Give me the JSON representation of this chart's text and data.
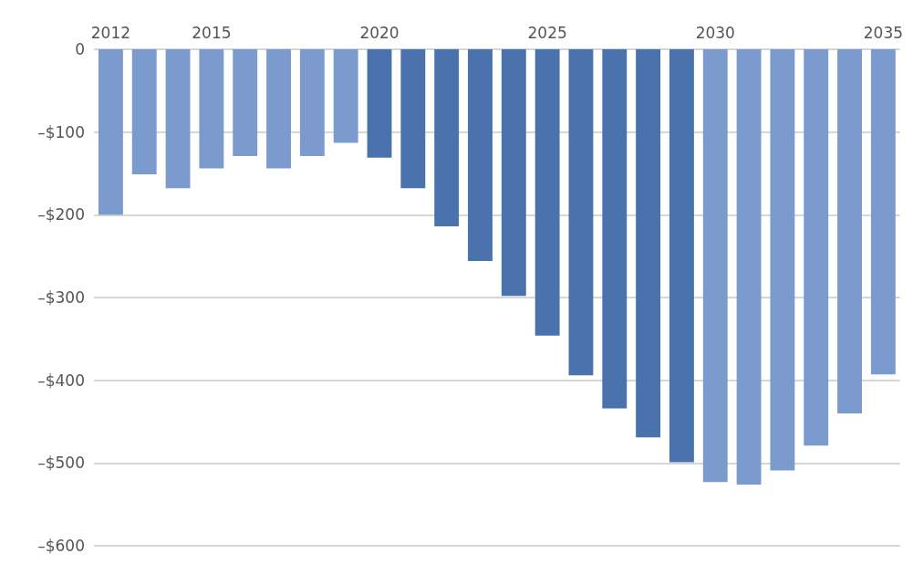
{
  "chart_data": {
    "type": "bar",
    "categories": [
      "2012",
      null,
      null,
      "2015",
      null,
      null,
      null,
      null,
      "2020",
      null,
      null,
      null,
      null,
      "2025",
      null,
      null,
      null,
      null,
      "2030",
      null,
      null,
      null,
      null,
      "2035"
    ],
    "values": [
      -200,
      -151,
      -168,
      -144,
      -129,
      -144,
      -129,
      -113,
      -131,
      -168,
      -214,
      -256,
      -298,
      -346,
      -394,
      -434,
      -469,
      -499,
      -523,
      -526,
      -509,
      -479,
      -440,
      -393
    ],
    "colors": [
      "#7b9ace",
      "#7b9ace",
      "#7b9ace",
      "#7b9ace",
      "#7b9ace",
      "#7b9ace",
      "#7b9ace",
      "#7b9ace",
      "#4a72ad",
      "#4a72ad",
      "#4a72ad",
      "#4a72ad",
      "#4a72ad",
      "#4a72ad",
      "#4a72ad",
      "#4a72ad",
      "#4a72ad",
      "#4a72ad",
      "#7b9ace",
      "#7b9ace",
      "#7b9ace",
      "#7b9ace",
      "#7b9ace",
      "#7b9ace"
    ],
    "ylim": [
      -600,
      0
    ],
    "yticks": [
      {
        "value": -600,
        "label": "–$600"
      },
      {
        "value": -500,
        "label": "–$500"
      },
      {
        "value": -400,
        "label": "–$400"
      },
      {
        "value": -300,
        "label": "–$300"
      },
      {
        "value": -200,
        "label": "–$200"
      },
      {
        "value": -100,
        "label": "–$100"
      },
      {
        "value": 0,
        "label": "0"
      }
    ],
    "grid": "y"
  }
}
